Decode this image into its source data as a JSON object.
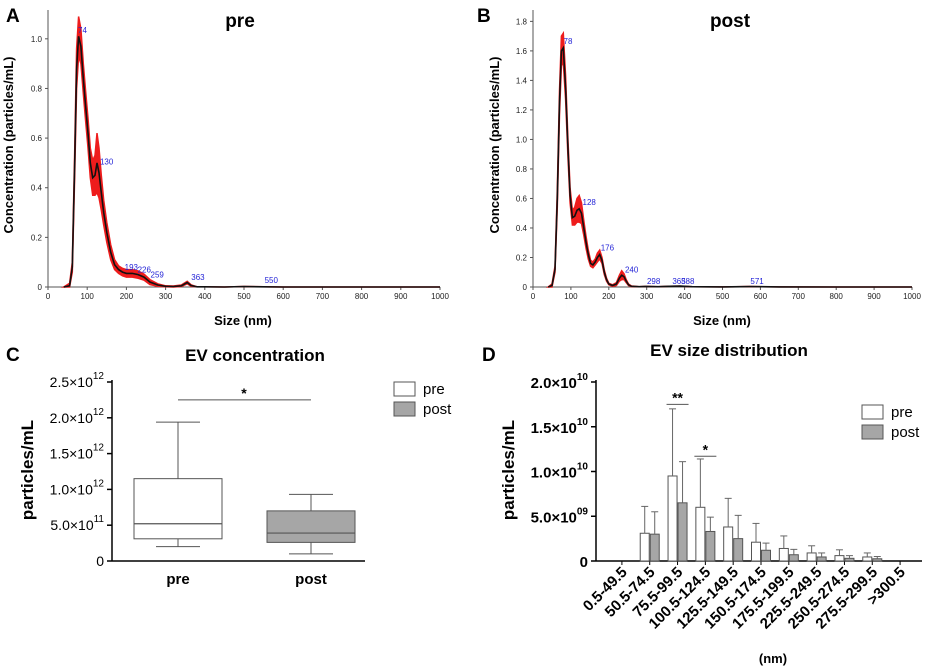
{
  "chart_data": [
    {
      "panel": "A",
      "type": "line",
      "title": "pre",
      "xlabel": "Size (nm)",
      "ylabel": "Concentration (particles/mL)",
      "xlim": [
        0,
        1000
      ],
      "ylim": [
        0,
        1.1
      ],
      "xticks": [
        0,
        100,
        200,
        300,
        400,
        500,
        600,
        700,
        800,
        900,
        1000
      ],
      "yticks": [
        "0",
        "0.2",
        "0.4",
        "0.6",
        "0.8",
        "1.0"
      ],
      "ytick_values": [
        0,
        0.2,
        0.4,
        0.6,
        0.8,
        1.0
      ],
      "series": [
        {
          "name": "mean",
          "x": [
            40,
            55,
            62,
            68,
            73,
            78,
            84,
            90,
            96,
            102,
            108,
            114,
            120,
            125,
            130,
            136,
            142,
            150,
            160,
            170,
            180,
            190,
            200,
            215,
            230,
            245,
            260,
            280,
            300,
            320,
            340,
            355,
            365,
            380,
            400,
            450,
            500,
            550,
            600,
            700,
            800,
            900,
            1000
          ],
          "y": [
            0,
            0.005,
            0.08,
            0.5,
            0.88,
            1.01,
            0.97,
            0.84,
            0.73,
            0.62,
            0.5,
            0.44,
            0.45,
            0.5,
            0.46,
            0.38,
            0.3,
            0.22,
            0.14,
            0.09,
            0.07,
            0.06,
            0.055,
            0.055,
            0.05,
            0.04,
            0.02,
            0.008,
            0.003,
            0.002,
            0.005,
            0.018,
            0.006,
            0.001,
            0.001,
            0,
            0.002,
            0.001,
            0,
            0,
            0,
            0,
            0
          ]
        }
      ],
      "band": [
        0,
        0.01,
        0.02,
        0.05,
        0.08,
        0.08,
        0.07,
        0.06,
        0.06,
        0.06,
        0.06,
        0.07,
        0.08,
        0.12,
        0.1,
        0.07,
        0.05,
        0.04,
        0.03,
        0.02,
        0.015,
        0.015,
        0.015,
        0.015,
        0.015,
        0.012,
        0.01,
        0.005,
        0.002,
        0.002,
        0.003,
        0.005,
        0.003,
        0,
        0,
        0,
        0,
        0,
        0,
        0,
        0,
        0,
        0
      ],
      "peak_labels": [
        {
          "text": "74",
          "x": 74,
          "y": 1.02
        },
        {
          "text": "130",
          "x": 130,
          "y": 0.49
        },
        {
          "text": "193",
          "x": 193,
          "y": 0.065
        },
        {
          "text": "226",
          "x": 226,
          "y": 0.055
        },
        {
          "text": "259",
          "x": 259,
          "y": 0.035
        },
        {
          "text": "363",
          "x": 363,
          "y": 0.025
        },
        {
          "text": "550",
          "x": 550,
          "y": 0.012
        }
      ],
      "peak_prefix": "",
      "peak_partial_74": "74"
    },
    {
      "panel": "B",
      "type": "line",
      "title": "post",
      "xlabel": "Size (nm)",
      "ylabel": "Concentration (particles/mL)",
      "xlim": [
        0,
        1000
      ],
      "ylim": [
        0,
        1.85
      ],
      "xticks": [
        0,
        100,
        200,
        300,
        400,
        500,
        600,
        700,
        800,
        900,
        1000
      ],
      "yticks": [
        "0",
        "0.2",
        "0.4",
        "0.6",
        "0.8",
        "1.0",
        "1.2",
        "1.4",
        "1.6",
        "1.8"
      ],
      "ytick_values": [
        0,
        0.2,
        0.4,
        0.6,
        0.8,
        1.0,
        1.2,
        1.4,
        1.6,
        1.8
      ],
      "series": [
        {
          "name": "mean",
          "x": [
            40,
            50,
            58,
            64,
            70,
            75,
            80,
            86,
            92,
            98,
            104,
            110,
            116,
            122,
            128,
            134,
            140,
            146,
            152,
            158,
            164,
            170,
            176,
            182,
            188,
            194,
            200,
            210,
            220,
            228,
            234,
            240,
            246,
            252,
            260,
            280,
            298,
            330,
            360,
            388,
            420,
            500,
            571,
            650,
            800,
            1000
          ],
          "y": [
            0,
            0.01,
            0.12,
            0.6,
            1.25,
            1.6,
            1.62,
            1.35,
            0.95,
            0.62,
            0.47,
            0.48,
            0.52,
            0.53,
            0.5,
            0.4,
            0.3,
            0.22,
            0.16,
            0.15,
            0.17,
            0.2,
            0.22,
            0.18,
            0.1,
            0.05,
            0.02,
            0.01,
            0.02,
            0.06,
            0.08,
            0.07,
            0.04,
            0.015,
            0.005,
            0.002,
            0.004,
            0.002,
            0.005,
            0.006,
            0.002,
            0.001,
            0.003,
            0.001,
            0,
            0
          ]
        }
      ],
      "band": [
        0,
        0.01,
        0.02,
        0.06,
        0.08,
        0.1,
        0.1,
        0.08,
        0.06,
        0.05,
        0.05,
        0.06,
        0.08,
        0.09,
        0.07,
        0.05,
        0.04,
        0.03,
        0.02,
        0.02,
        0.02,
        0.03,
        0.03,
        0.02,
        0.015,
        0.01,
        0.005,
        0.005,
        0.01,
        0.02,
        0.03,
        0.02,
        0.01,
        0.005,
        0.002,
        0,
        0,
        0,
        0,
        0,
        0,
        0,
        0,
        0,
        0,
        0
      ],
      "peak_labels": [
        {
          "text": "78",
          "x": 78,
          "y": 1.64
        },
        {
          "text": "128",
          "x": 128,
          "y": 0.55
        },
        {
          "text": "176",
          "x": 176,
          "y": 0.24
        },
        {
          "text": "240",
          "x": 240,
          "y": 0.09
        },
        {
          "text": "298",
          "x": 298,
          "y": 0.015
        },
        {
          "text": "365",
          "x": 365,
          "y": 0.015
        },
        {
          "text": "388",
          "x": 388,
          "y": 0.015
        },
        {
          "text": "571",
          "x": 571,
          "y": 0.015
        }
      ]
    },
    {
      "panel": "C",
      "type": "box",
      "title": "EV concentration",
      "ylabel": "particles/mL",
      "ylim": [
        0,
        2500000000000.0
      ],
      "ytick_values": [
        0,
        500000000000.0,
        1000000000000.0,
        1500000000000.0,
        2000000000000.0,
        2500000000000.0
      ],
      "yticks": [
        {
          "mant": "0",
          "exp": ""
        },
        {
          "mant": "5.0×10",
          "exp": "11"
        },
        {
          "mant": "1.0×10",
          "exp": "12"
        },
        {
          "mant": "1.5×10",
          "exp": "12"
        },
        {
          "mant": "2.0×10",
          "exp": "12"
        },
        {
          "mant": "2.5×10",
          "exp": "12"
        }
      ],
      "categories": [
        "pre",
        "post"
      ],
      "boxes": [
        {
          "name": "pre",
          "min": 200000000000.0,
          "q1": 310000000000.0,
          "median": 520000000000.0,
          "q3": 1150000000000.0,
          "max": 1940000000000.0,
          "color": "#ffffff"
        },
        {
          "name": "post",
          "min": 100000000000.0,
          "q1": 260000000000.0,
          "median": 390000000000.0,
          "q3": 700000000000.0,
          "max": 930000000000.0,
          "color": "#a6a6a6"
        }
      ],
      "significance": "*",
      "sig_y": 2250000000000.0,
      "legend": [
        {
          "label": "pre",
          "color": "#ffffff"
        },
        {
          "label": "post",
          "color": "#a6a6a6"
        }
      ]
    },
    {
      "panel": "D",
      "type": "bar",
      "title": "EV size distribution",
      "ylabel": "particles/mL",
      "xlabel": "(nm)",
      "ylim": [
        0,
        20000000000.0
      ],
      "ytick_values": [
        0,
        5000000000.0,
        10000000000.0,
        15000000000.0,
        20000000000.0
      ],
      "yticks": [
        {
          "mant": "0",
          "exp": ""
        },
        {
          "mant": "5.0×10",
          "exp": "09"
        },
        {
          "mant": "1.0×10",
          "exp": "10"
        },
        {
          "mant": "1.5×10",
          "exp": "10"
        },
        {
          "mant": "2.0×10",
          "exp": "10"
        }
      ],
      "categories": [
        "0.5-49.5",
        "50.5-74.5",
        "75.5-99.5",
        "100.5-124.5",
        "125.5-149.5",
        "150.5-174.5",
        "175.5-199.5",
        "225.5-249.5",
        "250.5-274.5",
        "275.5-299.5",
        ">300.5"
      ],
      "series": [
        {
          "name": "pre",
          "color": "#ffffff",
          "values": [
            0,
            3100000000.0,
            9500000000.0,
            6000000000.0,
            3800000000.0,
            2100000000.0,
            1400000000.0,
            900000000.0,
            600000000.0,
            450000000.0,
            0
          ],
          "errors": [
            0,
            3000000000.0,
            7500000000.0,
            5400000000.0,
            3200000000.0,
            2100000000.0,
            1400000000.0,
            800000000.0,
            650000000.0,
            450000000.0,
            0
          ]
        },
        {
          "name": "post",
          "color": "#a6a6a6",
          "values": [
            0,
            3000000000.0,
            6500000000.0,
            3300000000.0,
            2500000000.0,
            1200000000.0,
            700000000.0,
            450000000.0,
            300000000.0,
            250000000.0,
            0
          ],
          "errors": [
            0,
            2500000000.0,
            4600000000.0,
            1600000000.0,
            2600000000.0,
            800000000.0,
            600000000.0,
            450000000.0,
            300000000.0,
            250000000.0,
            0
          ]
        }
      ],
      "significance": [
        {
          "category": "75.5-99.5",
          "text": "**",
          "y": 17500000000.0
        },
        {
          "category": "100.5-124.5",
          "text": "*",
          "y": 11700000000.0
        }
      ],
      "legend": [
        {
          "label": "pre",
          "color": "#ffffff"
        },
        {
          "label": "post",
          "color": "#a6a6a6"
        }
      ]
    }
  ]
}
